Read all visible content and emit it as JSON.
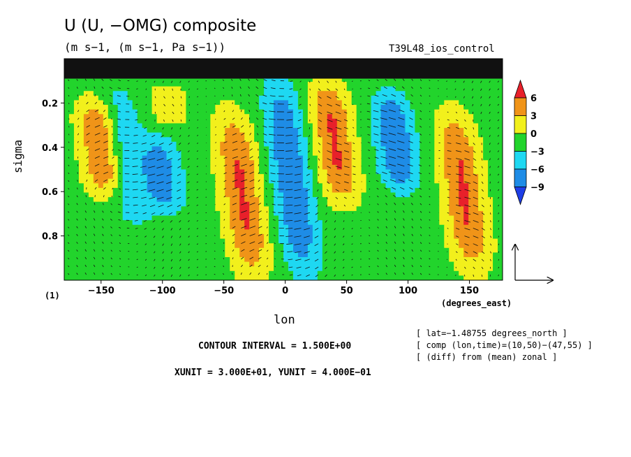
{
  "header": {
    "title": "U (U, −OMG) composite",
    "units": "(m s−1, (m s−1, Pa s−1))",
    "run_name": "T39L48_ios_control"
  },
  "notes": {
    "page_number": "(1)",
    "x_unit": "(degrees_east)",
    "lat": "[ lat=−1.48755 degrees_north ]",
    "comp": "[ comp (lon,time)=(10,50)−(47,55) ]",
    "diff": "[ (diff) from (mean) zonal ]",
    "contour_interval": "CONTOUR INTERVAL = 1.500E+00",
    "vector_scale": "XUNIT = 3.000E+01, YUNIT = 4.000E−01"
  },
  "chart_data": {
    "type": "heatmap",
    "xlabel": "lon",
    "ylabel": "sigma",
    "xlim": [
      -180,
      177
    ],
    "ylim": [
      0.0,
      1.0
    ],
    "y_reversed": true,
    "x_ticks": [
      -150,
      -100,
      -50,
      0,
      50,
      100,
      150
    ],
    "x_tick_labels": [
      "−150",
      "−100",
      "−50",
      "0",
      "50",
      "100",
      "150"
    ],
    "y_ticks": [
      0.2,
      0.4,
      0.6,
      0.8
    ],
    "y_tick_labels": [
      "0.2",
      "0.4",
      "0.6",
      "0.8"
    ],
    "colorbar": {
      "levels": [
        6,
        3,
        0,
        -3,
        -6,
        -9
      ],
      "labels": [
        "6",
        "3",
        "0",
        "−3",
        "−6",
        "−9"
      ],
      "colors": [
        "#e8202a",
        "#f09418",
        "#f2f01c",
        "#22d42c",
        "#1ed8f2",
        "#1e8ce6",
        "#1e3ee6"
      ]
    },
    "anomaly_lobes": [
      {
        "lon": -150,
        "sigma_top": 0.18,
        "sigma_bottom": 0.62,
        "value": 7.5
      },
      {
        "lon": -130,
        "sigma_top": 0.12,
        "sigma_bottom": 0.75,
        "value": -4.5
      },
      {
        "lon": -95,
        "sigma_top": 0.12,
        "sigma_bottom": 0.3,
        "value": 3.0
      },
      {
        "lon": -100,
        "sigma_top": 0.35,
        "sigma_bottom": 0.7,
        "value": -6.0
      },
      {
        "lon": -35,
        "sigma_top": 0.25,
        "sigma_bottom": 0.98,
        "value": 7.5
      },
      {
        "lon": 5,
        "sigma_top": 0.1,
        "sigma_bottom": 0.98,
        "value": -7.5
      },
      {
        "lon": 40,
        "sigma_top": 0.1,
        "sigma_bottom": 0.65,
        "value": 7.5
      },
      {
        "lon": 90,
        "sigma_top": 0.15,
        "sigma_bottom": 0.6,
        "value": -7.5
      },
      {
        "lon": 145,
        "sigma_top": 0.25,
        "sigma_bottom": 0.95,
        "value": 7.5
      }
    ],
    "reference_vector": {
      "xunit": 30.0,
      "yunit": 0.4
    }
  }
}
